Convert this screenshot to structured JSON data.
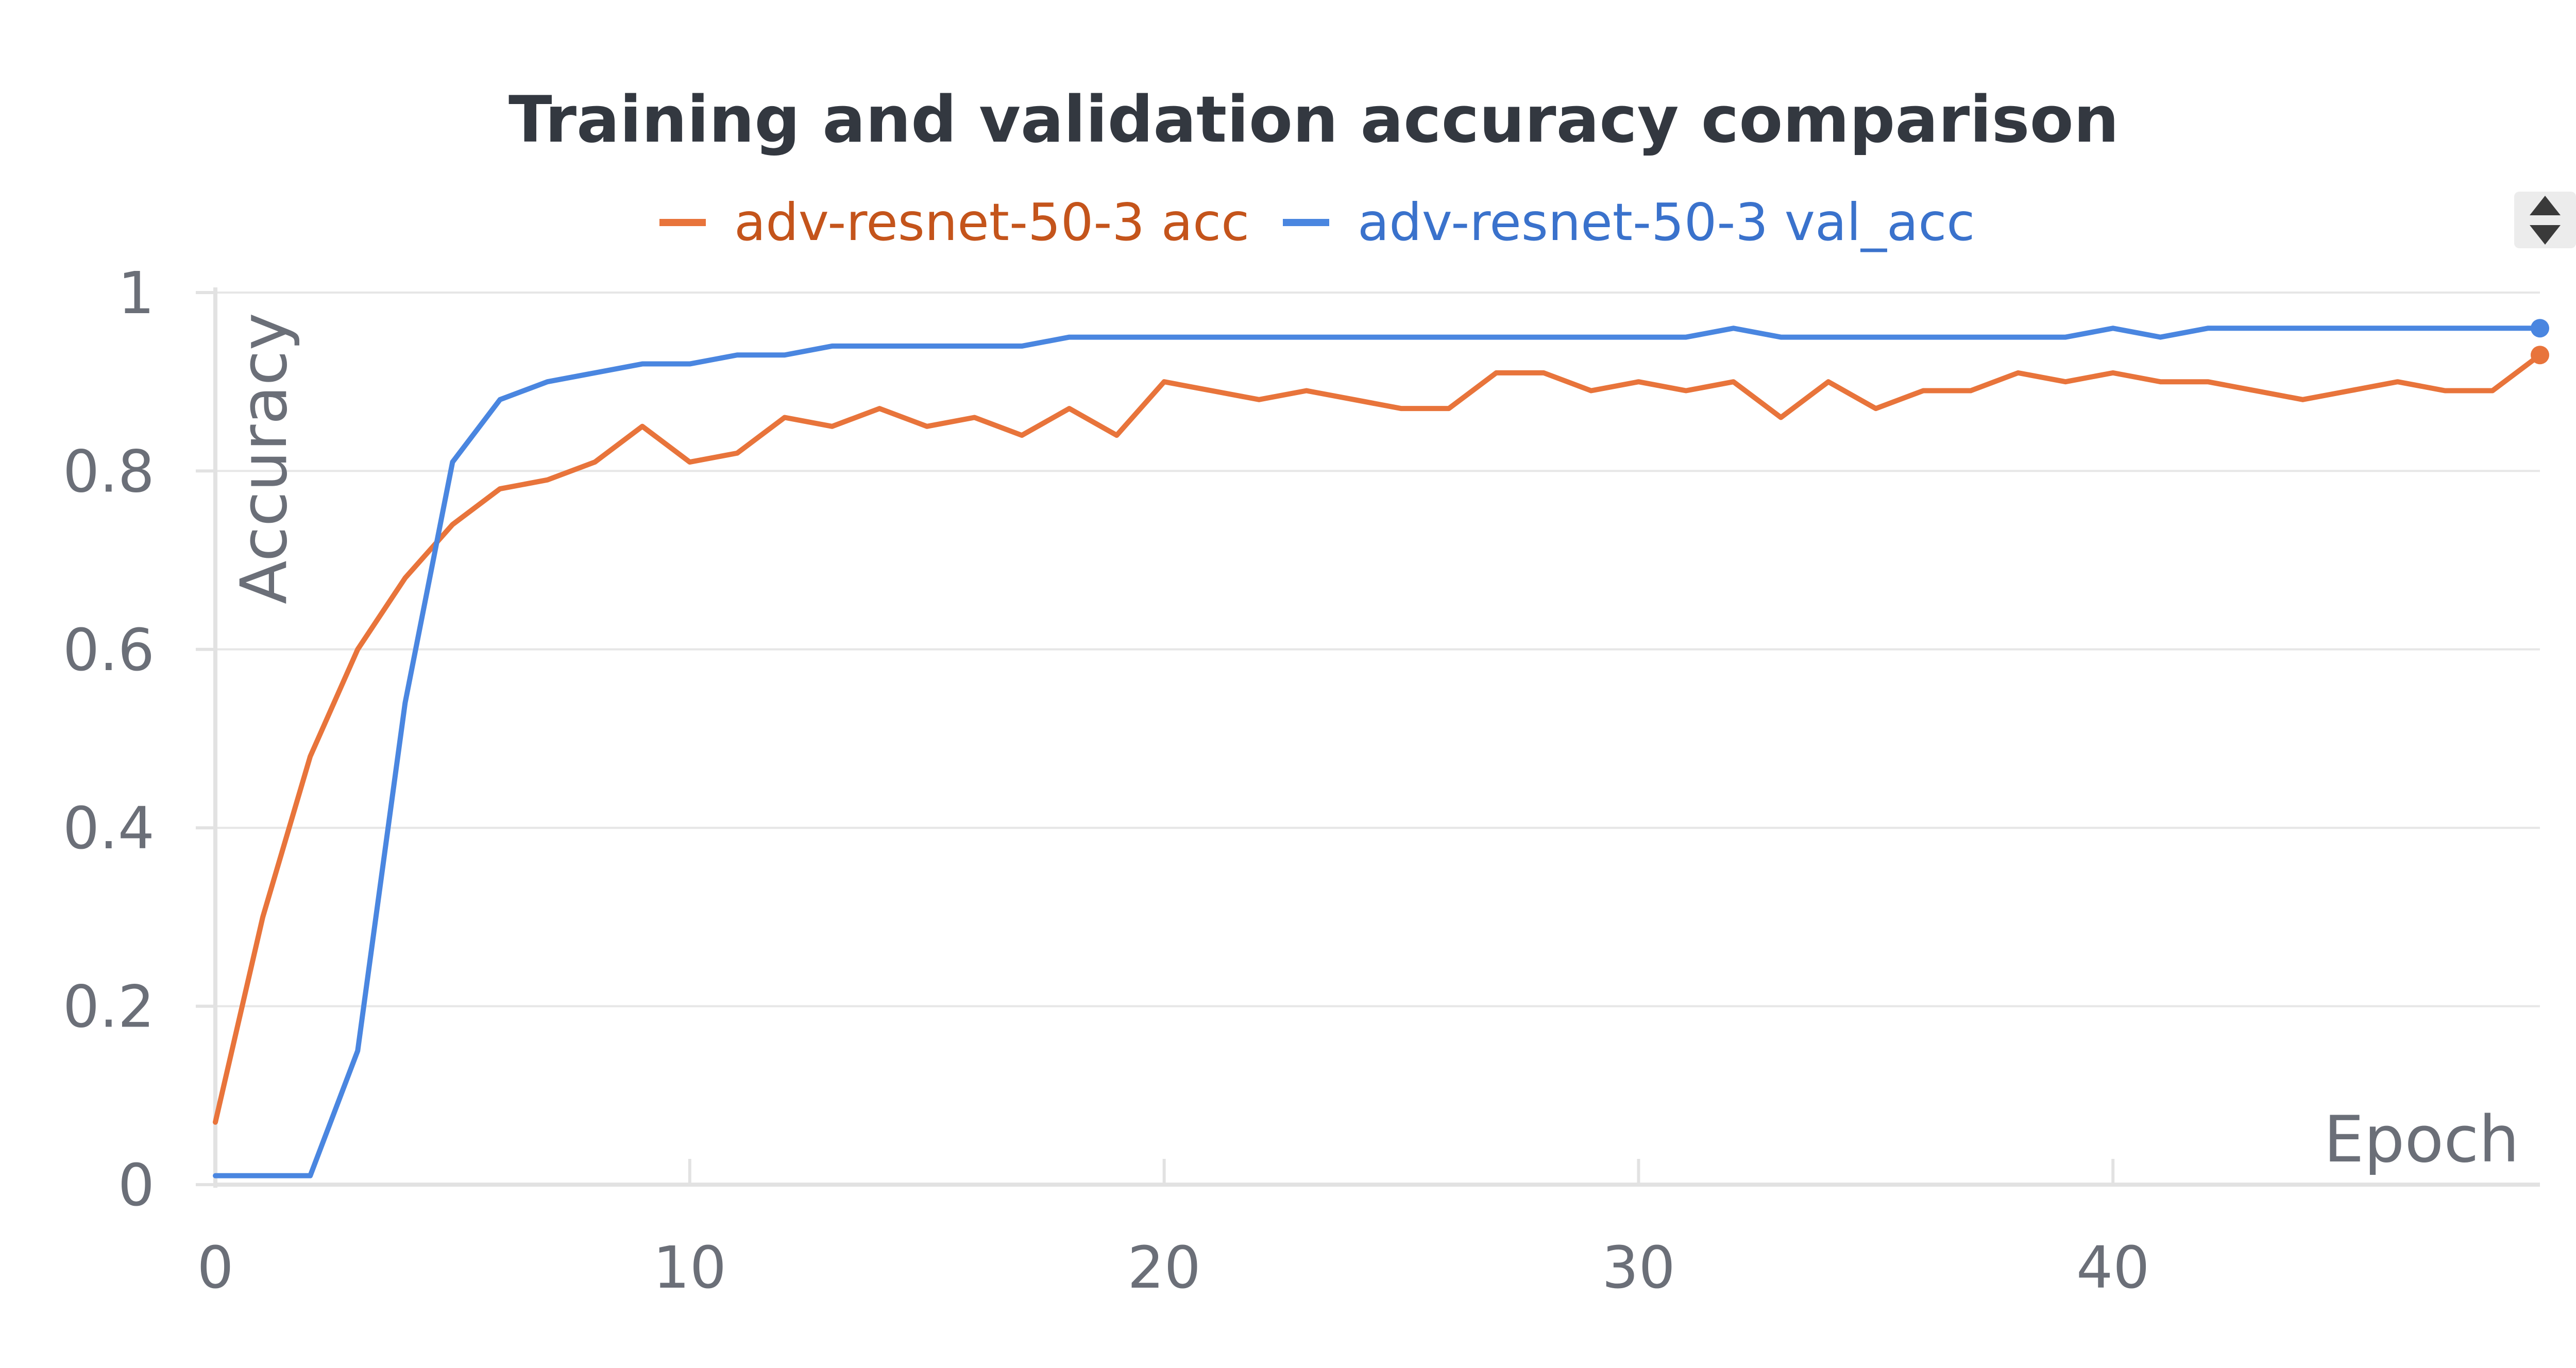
{
  "chart_data": {
    "type": "line",
    "title": "Training and validation accuracy comparison",
    "xlabel": "Epoch",
    "ylabel": "Accuracy",
    "xlim": [
      0,
      49
    ],
    "ylim": [
      0,
      1
    ],
    "xticks": [
      "0",
      "10",
      "20",
      "30",
      "40"
    ],
    "yticks": [
      "0",
      "0.2",
      "0.4",
      "0.6",
      "0.8",
      "1"
    ],
    "grid": true,
    "legend_position": "top-center",
    "x": [
      0,
      1,
      2,
      3,
      4,
      5,
      6,
      7,
      8,
      9,
      10,
      11,
      12,
      13,
      14,
      15,
      16,
      17,
      18,
      19,
      20,
      21,
      22,
      23,
      24,
      25,
      26,
      27,
      28,
      29,
      30,
      31,
      32,
      33,
      34,
      35,
      36,
      37,
      38,
      39,
      40,
      41,
      42,
      43,
      44,
      45,
      46,
      47,
      48,
      49
    ],
    "series": [
      {
        "name": "adv-resnet-50-3 acc",
        "color": "#e8743b",
        "values": [
          0.07,
          0.3,
          0.48,
          0.6,
          0.68,
          0.74,
          0.78,
          0.79,
          0.81,
          0.85,
          0.81,
          0.82,
          0.86,
          0.85,
          0.87,
          0.85,
          0.86,
          0.84,
          0.87,
          0.84,
          0.9,
          0.89,
          0.88,
          0.89,
          0.88,
          0.87,
          0.87,
          0.91,
          0.91,
          0.89,
          0.9,
          0.89,
          0.9,
          0.86,
          0.9,
          0.87,
          0.89,
          0.89,
          0.91,
          0.9,
          0.91,
          0.9,
          0.9,
          0.89,
          0.88,
          0.89,
          0.9,
          0.89,
          0.89,
          0.93
        ]
      },
      {
        "name": "adv-resnet-50-3 val_acc",
        "color": "#4a86e0",
        "values": [
          0.01,
          0.01,
          0.01,
          0.15,
          0.54,
          0.81,
          0.88,
          0.9,
          0.91,
          0.92,
          0.92,
          0.93,
          0.93,
          0.94,
          0.94,
          0.94,
          0.94,
          0.94,
          0.95,
          0.95,
          0.95,
          0.95,
          0.95,
          0.95,
          0.95,
          0.95,
          0.95,
          0.95,
          0.95,
          0.95,
          0.95,
          0.95,
          0.96,
          0.95,
          0.95,
          0.95,
          0.95,
          0.95,
          0.95,
          0.95,
          0.96,
          0.95,
          0.96,
          0.96,
          0.96,
          0.96,
          0.96,
          0.96,
          0.96,
          0.96
        ]
      }
    ]
  },
  "controls": {
    "sort_icon": "sort-icon"
  }
}
